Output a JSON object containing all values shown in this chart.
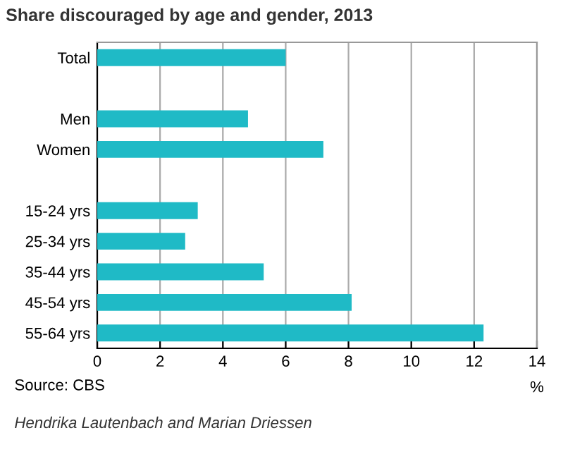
{
  "chart_data": {
    "type": "bar",
    "orientation": "horizontal",
    "title": "Share discouraged by age and gender, 2013",
    "xlabel": "%",
    "categories": [
      "Total",
      null,
      "Men",
      "Women",
      null,
      "15-24 yrs",
      "25-34 yrs",
      "35-44 yrs",
      "45-54 yrs",
      "55-64 yrs"
    ],
    "values": [
      6.0,
      null,
      4.8,
      7.2,
      null,
      3.2,
      2.8,
      5.3,
      8.1,
      12.3
    ],
    "color": "#1fbac6",
    "xlim": [
      0,
      14
    ],
    "xticks": [
      0,
      2,
      4,
      6,
      8,
      10,
      12,
      14
    ],
    "grid": "x",
    "annotations": [
      "Source: CBS",
      "Hendrika Lautenbach and Marian Driessen"
    ]
  }
}
